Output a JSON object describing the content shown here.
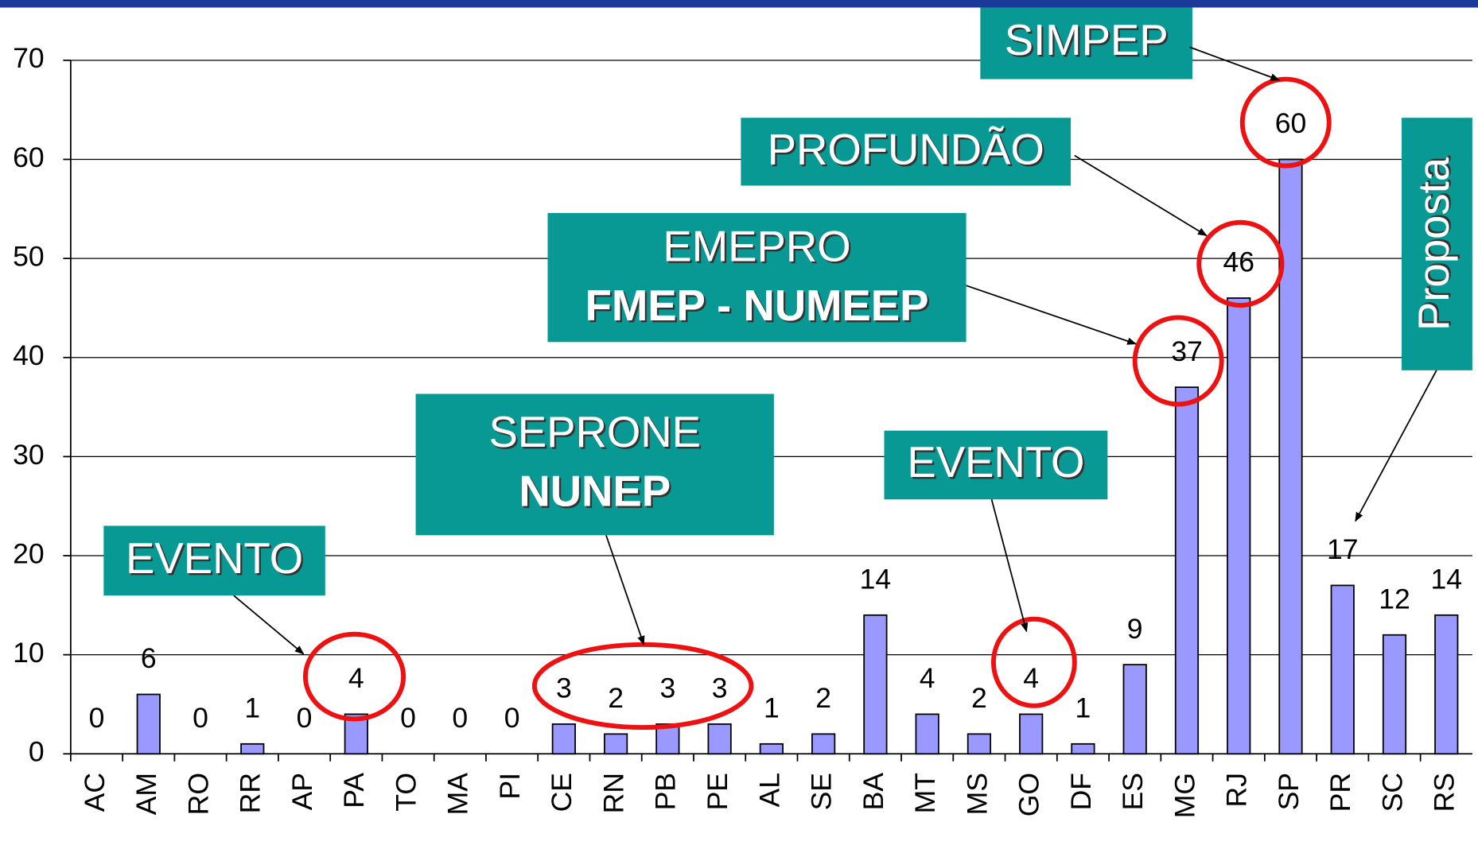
{
  "chart_data": {
    "type": "bar",
    "categories": [
      "AC",
      "AM",
      "RO",
      "RR",
      "AP",
      "PA",
      "TO",
      "MA",
      "PI",
      "CE",
      "RN",
      "PB",
      "PE",
      "AL",
      "SE",
      "BA",
      "MT",
      "MS",
      "GO",
      "DF",
      "ES",
      "MG",
      "RJ",
      "SP",
      "PR",
      "SC",
      "RS"
    ],
    "values": [
      0,
      6,
      0,
      1,
      0,
      4,
      0,
      0,
      0,
      3,
      2,
      3,
      3,
      1,
      2,
      14,
      4,
      2,
      4,
      1,
      9,
      37,
      46,
      60,
      17,
      12,
      14
    ],
    "color": "#9999ff",
    "ylim": [
      0,
      70
    ],
    "yticks": [
      0,
      10,
      20,
      30,
      40,
      50,
      60,
      70
    ],
    "grid": true,
    "annotations": [
      {
        "lines": [
          "SIMPEP"
        ]
      },
      {
        "lines": [
          "PROFUNDÃO"
        ]
      },
      {
        "lines": [
          "EMEPRO",
          "FMEP - NUMEEP"
        ]
      },
      {
        "lines": [
          "SEPRONE",
          "NUNEP"
        ]
      },
      {
        "lines": [
          "EVENTO"
        ]
      },
      {
        "lines": [
          "EVENTO"
        ]
      },
      {
        "lines": [
          "Proposta"
        ]
      }
    ]
  }
}
